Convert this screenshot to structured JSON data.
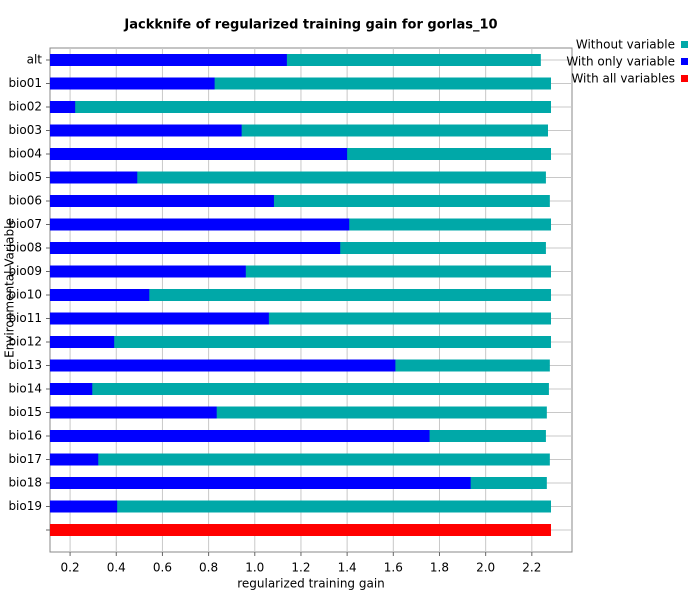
{
  "chart_data": {
    "type": "bar",
    "orientation": "horizontal",
    "title": "Jackknife of regularized training gain for gorlas_10",
    "x_label": "regularized training gain",
    "y_label": "Environmental Variable",
    "categories": [
      "alt",
      "bio01",
      "bio02",
      "bio03",
      "bio04",
      "bio05",
      "bio06",
      "bio07",
      "bio08",
      "bio09",
      "bio10",
      "bio11",
      "bio12",
      "bio13",
      "bio14",
      "bio15",
      "bio16",
      "bio17",
      "bio18",
      "bio19",
      null
    ],
    "series": [
      {
        "name": "Without variable",
        "color": "#00a8a8",
        "values": [
          2.239,
          2.283,
          2.283,
          2.27,
          2.283,
          2.261,
          2.278,
          2.283,
          2.261,
          2.283,
          2.283,
          2.283,
          2.283,
          2.278,
          2.274,
          2.265,
          2.261,
          2.278,
          2.265,
          2.283,
          null
        ]
      },
      {
        "name": "With only variable",
        "color": "#0000ff",
        "values": [
          1.139,
          0.826,
          0.222,
          0.943,
          1.4,
          0.491,
          1.083,
          1.409,
          1.37,
          0.961,
          0.543,
          1.061,
          0.391,
          1.609,
          0.296,
          0.835,
          1.757,
          0.322,
          1.935,
          0.404,
          null
        ]
      },
      {
        "name": "With all variables",
        "color": "#ff0000",
        "values": [
          null,
          null,
          null,
          null,
          null,
          null,
          null,
          null,
          null,
          null,
          null,
          null,
          null,
          null,
          null,
          null,
          null,
          null,
          null,
          null,
          2.283
        ]
      }
    ],
    "xlim": [
      0.113,
      2.374
    ],
    "xticks": [
      0.2,
      0.4,
      0.6,
      0.8,
      {
        "value": 1,
        "label": "1.0"
      },
      1.2,
      1.4,
      1.6,
      1.8,
      {
        "value": 2,
        "label": "2.0"
      },
      2.2
    ],
    "grid": true,
    "legend": "top-right"
  }
}
